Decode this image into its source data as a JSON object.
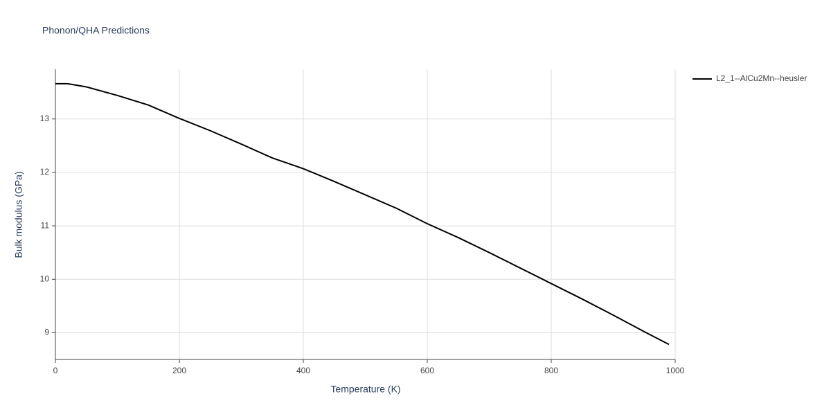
{
  "chart_data": {
    "type": "line",
    "title": "Phonon/QHA Predictions",
    "x_label": "Temperature (K)",
    "y_label": "Bulk modulus (GPa)",
    "x": [
      0,
      20,
      50,
      100,
      150,
      200,
      250,
      300,
      350,
      400,
      450,
      500,
      550,
      600,
      650,
      700,
      750,
      800,
      850,
      900,
      950,
      990
    ],
    "series": [
      {
        "name": "L2_1--AlCu2Mn--heusler",
        "color": "#000000",
        "values": [
          13.66,
          13.66,
          13.6,
          13.44,
          13.26,
          13.01,
          12.78,
          12.53,
          12.27,
          12.07,
          11.83,
          11.58,
          11.33,
          11.04,
          10.78,
          10.5,
          10.21,
          9.92,
          9.63,
          9.33,
          9.02,
          8.78
        ]
      }
    ],
    "xlim": [
      0,
      1000
    ],
    "xticks": [
      0,
      200,
      400,
      600,
      800,
      1000
    ],
    "ylim": [
      8.5,
      13.93
    ],
    "yticks": [
      9,
      10,
      11,
      12,
      13
    ],
    "grid": true,
    "legend": "right"
  }
}
